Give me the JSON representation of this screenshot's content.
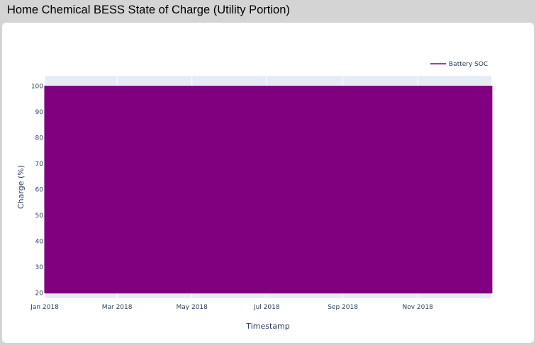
{
  "header": {
    "title": "Home Chemical BESS State of Charge (Utility Portion)"
  },
  "colors": {
    "plot_background": "#e5ecf6",
    "series": "#800080",
    "gridline": "#ffffff"
  },
  "chart_data": {
    "type": "line",
    "title": "",
    "xlabel": "Timestamp",
    "ylabel": "Charge (%)",
    "x_start": "2018-01-01",
    "x_end": "2018-12-31",
    "ylim": [
      18,
      104
    ],
    "yticks": [
      20,
      30,
      40,
      50,
      60,
      70,
      80,
      90,
      100
    ],
    "xticks": [
      {
        "date": "2018-01-01",
        "label": "Jan 2018"
      },
      {
        "date": "2018-03-01",
        "label": "Mar 2018"
      },
      {
        "date": "2018-05-01",
        "label": "May 2018"
      },
      {
        "date": "2018-07-01",
        "label": "Jul 2018"
      },
      {
        "date": "2018-09-01",
        "label": "Sep 2018"
      },
      {
        "date": "2018-11-01",
        "label": "Nov 2018"
      }
    ],
    "grid": true,
    "legend_position": "top-right",
    "series": [
      {
        "name": "Battery SOC",
        "min": 20,
        "max": 100,
        "pattern": "daily cycle between 20 and 100"
      }
    ]
  }
}
